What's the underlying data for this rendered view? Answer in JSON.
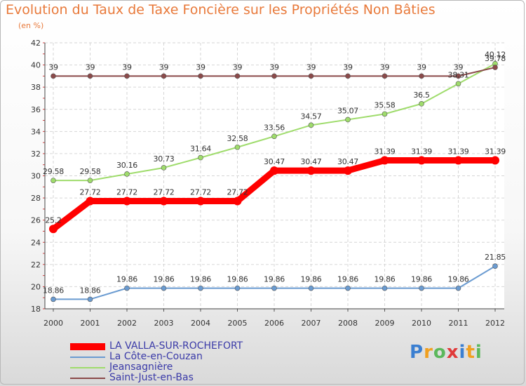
{
  "chart_data": {
    "type": "line",
    "title": "Evolution du Taux de Taxe Foncière sur les Propriétés Non Bâties",
    "subtitle": "(en %)",
    "xlabel": "",
    "ylabel": "",
    "ylim": [
      18,
      42
    ],
    "yticks": [
      18,
      20,
      22,
      24,
      26,
      28,
      30,
      32,
      34,
      36,
      38,
      40,
      42
    ],
    "categories": [
      "2000",
      "2001",
      "2002",
      "2003",
      "2004",
      "2005",
      "2006",
      "2007",
      "2008",
      "2009",
      "2010",
      "2011",
      "2012"
    ],
    "grid": true,
    "legend_position": "bottom-left",
    "series": [
      {
        "name": "LA VALLA-SUR-ROCHEFORT",
        "color": "#ff0000",
        "values": [
          25.2,
          27.72,
          27.72,
          27.72,
          27.72,
          27.72,
          30.47,
          30.47,
          30.47,
          31.39,
          31.39,
          31.39,
          31.39
        ],
        "labels": [
          "25.2",
          "27.72",
          "27.72",
          "27.72",
          "27.72",
          "27.72",
          "30.47",
          "30.47",
          "30.47",
          "31.39",
          "31.39",
          "31.39",
          "31.39"
        ]
      },
      {
        "name": "La Côte-en-Couzan",
        "color": "#6a9bd1",
        "values": [
          18.86,
          18.86,
          19.86,
          19.86,
          19.86,
          19.86,
          19.86,
          19.86,
          19.86,
          19.86,
          19.86,
          19.86,
          21.85
        ],
        "labels": [
          "18.86",
          "18.86",
          "19.86",
          "19.86",
          "19.86",
          "19.86",
          "19.86",
          "19.86",
          "19.86",
          "19.86",
          "19.86",
          "19.86",
          "21.85"
        ]
      },
      {
        "name": "Jeansagnière",
        "color": "#9fdc6c",
        "values": [
          29.58,
          29.58,
          30.16,
          30.73,
          31.64,
          32.58,
          33.56,
          34.57,
          35.07,
          35.58,
          36.5,
          38.31,
          40.12
        ],
        "labels": [
          "29.58",
          "29.58",
          "30.16",
          "30.73",
          "31.64",
          "32.58",
          "33.56",
          "34.57",
          "35.07",
          "35.58",
          "36.5",
          "38.31",
          "40.12"
        ]
      },
      {
        "name": "Saint-Just-en-Bas",
        "color": "#8b4a4a",
        "values": [
          39,
          39,
          39,
          39,
          39,
          39,
          39,
          39,
          39,
          39,
          39,
          39,
          39.78
        ],
        "labels": [
          "39",
          "39",
          "39",
          "39",
          "39",
          "39",
          "39",
          "39",
          "39",
          "39",
          "39",
          "39",
          "39.78"
        ]
      }
    ]
  },
  "logo": {
    "text": "Proxiti",
    "letters": [
      "P",
      "r",
      "o",
      "x",
      "i",
      "t",
      "i"
    ]
  }
}
